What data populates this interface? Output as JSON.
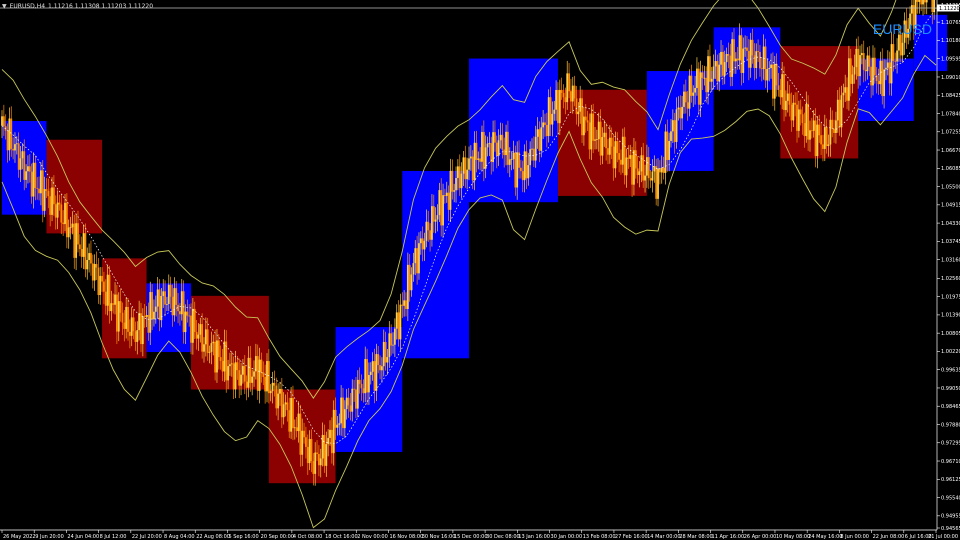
{
  "header": {
    "symbol_timeframe": "EURUSD,H4",
    "ohlc": "1.11216 1.11308 1.11203 1.11220",
    "watermark": "EURUSD",
    "current_price_label": "1.11220"
  },
  "colors": {
    "background": "#000000",
    "bull_zone": "#0000ff",
    "bear_zone": "#8b0000",
    "candles": "#ffa500",
    "band": "#c8c85a",
    "watermark": "#1e90ff"
  },
  "chart_data": {
    "type": "line",
    "title": "",
    "ylim": [
      0.94565,
      1.11315
    ],
    "y_ticks": [
      "1.11315",
      "1.10765",
      "1.10180",
      "1.09595",
      "1.09010",
      "1.08425",
      "1.07840",
      "1.07255",
      "1.06670",
      "1.06085",
      "1.05500",
      "1.04915",
      "1.04330",
      "1.03745",
      "1.03160",
      "1.02560",
      "1.01975",
      "1.01390",
      "1.00805",
      "1.00220",
      "0.99635",
      "0.99050",
      "0.98465",
      "0.97880",
      "0.97295",
      "0.96710",
      "0.96125",
      "0.95540",
      "0.94955",
      "0.94565"
    ],
    "x_ticks": [
      "26 May 2022",
      "9 Jun 20:00",
      "24 Jun 04:00",
      "8 Jul 12:00",
      "22 Jul 20:00",
      "8 Aug 04:00",
      "22 Aug 08:00",
      "5 Sep 16:00",
      "20 Sep 00:00",
      "4 Oct 08:00",
      "18 Oct 16:00",
      "2 Nov 00:00",
      "16 Nov 08:00",
      "30 Nov 16:00",
      "15 Dec 00:00",
      "30 Dec 08:00",
      "13 Jan 16:00",
      "30 Jan 00:00",
      "13 Feb 08:00",
      "27 Feb 16:00",
      "14 Mar 00:00",
      "28 Mar 08:00",
      "11 Apr 16:00",
      "26 Apr 00:00",
      "10 May 08:00",
      "24 May 16:00",
      "8 Jun 00:00",
      "22 Jun 08:00",
      "6 Jul 16:00",
      "21 Jul 00:00"
    ],
    "series": [
      {
        "values": [
          1.0745,
          1.0685,
          1.061,
          1.056,
          1.052,
          1.048,
          1.042,
          1.036,
          1.03,
          1.023,
          1.017,
          1.012,
          1.008,
          1.013,
          1.0175,
          1.02,
          1.016,
          1.011,
          1.006,
          1.0025,
          0.9985,
          0.995,
          0.994,
          0.9965,
          0.992,
          0.9865,
          0.981,
          0.9745,
          0.9665,
          0.9705,
          0.979,
          0.9845,
          0.99,
          0.9945,
          0.998,
          1.005,
          1.016,
          1.03,
          1.039,
          1.046,
          1.052,
          1.058,
          1.062,
          1.0655,
          1.068,
          1.069,
          1.062,
          1.06,
          1.069,
          1.076,
          1.082,
          1.087,
          1.078,
          1.072,
          1.07,
          1.066,
          1.064,
          1.061,
          1.06,
          1.057,
          1.07,
          1.08,
          1.086,
          1.089,
          1.092,
          1.095,
          1.097,
          1.098,
          1.096,
          1.092,
          1.086,
          1.08,
          1.076,
          1.072,
          1.069,
          1.076,
          1.088,
          1.096,
          1.093,
          1.089,
          1.095,
          1.102,
          1.112,
          1.119,
          1.115
        ]
      }
    ],
    "zones": [
      {
        "start": 0,
        "end": 4,
        "low": 1.046,
        "high": 1.076,
        "trend": "bull"
      },
      {
        "start": 4,
        "end": 9,
        "low": 1.04,
        "high": 1.07,
        "trend": "bear"
      },
      {
        "start": 9,
        "end": 13,
        "low": 1.0,
        "high": 1.032,
        "trend": "bear"
      },
      {
        "start": 13,
        "end": 17,
        "low": 1.002,
        "high": 1.024,
        "trend": "bull"
      },
      {
        "start": 17,
        "end": 24,
        "low": 0.99,
        "high": 1.02,
        "trend": "bear"
      },
      {
        "start": 24,
        "end": 30,
        "low": 0.96,
        "high": 0.99,
        "trend": "bear"
      },
      {
        "start": 30,
        "end": 36,
        "low": 0.97,
        "high": 1.01,
        "trend": "bull"
      },
      {
        "start": 36,
        "end": 42,
        "low": 1.0,
        "high": 1.06,
        "trend": "bull"
      },
      {
        "start": 42,
        "end": 50,
        "low": 1.05,
        "high": 1.096,
        "trend": "bull"
      },
      {
        "start": 50,
        "end": 58,
        "low": 1.052,
        "high": 1.086,
        "trend": "bear"
      },
      {
        "start": 58,
        "end": 64,
        "low": 1.06,
        "high": 1.092,
        "trend": "bull"
      },
      {
        "start": 64,
        "end": 70,
        "low": 1.086,
        "high": 1.106,
        "trend": "bull"
      },
      {
        "start": 70,
        "end": 77,
        "low": 1.064,
        "high": 1.1,
        "trend": "bear"
      },
      {
        "start": 77,
        "end": 82,
        "low": 1.076,
        "high": 1.096,
        "trend": "bull"
      },
      {
        "start": 82,
        "end": 85,
        "low": 1.092,
        "high": 1.11,
        "trend": "bull"
      }
    ],
    "current_price": 1.1122
  }
}
